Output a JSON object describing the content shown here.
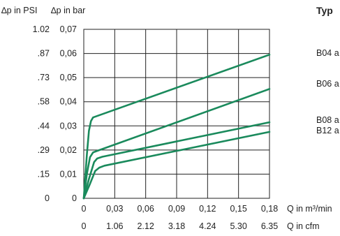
{
  "colors": {
    "series": "#1a8a5c",
    "title": "#1a8a5c",
    "grid": "#222222",
    "text": "#222222"
  },
  "chart_data": {
    "type": "line",
    "title": "Typ",
    "y_labels": {
      "psi": "∆p in PSI",
      "bar": "∆p in bar"
    },
    "x_labels": {
      "m3": "Q in m³/min",
      "cfm": "Q in cfm"
    },
    "xlim": [
      0,
      0.18
    ],
    "ylim": [
      0,
      0.07
    ],
    "grid": true,
    "x_ticks_m3": [
      "0",
      "0,03",
      "0,06",
      "0,09",
      "0,12",
      "0,15",
      "0,18"
    ],
    "x_ticks_cfm": [
      "0",
      "1.06",
      "2.12",
      "3.18",
      "4.24",
      "5.30",
      "6.35"
    ],
    "y_ticks_bar": [
      "0",
      "0,01",
      "0,02",
      "0,03",
      "0,04",
      "0,05",
      "0,06",
      "0,07"
    ],
    "y_ticks_psi": [
      "0",
      ".15",
      ".29",
      ".44",
      ".58",
      ".73",
      ".87",
      "1.02"
    ],
    "series": [
      {
        "name": "B04 a",
        "points": [
          [
            0,
            0
          ],
          [
            0.003,
            0.018
          ],
          [
            0.005,
            0.028
          ],
          [
            0.007,
            0.032
          ],
          [
            0.009,
            0.0335
          ],
          [
            0.18,
            0.0595
          ]
        ]
      },
      {
        "name": "B06 a",
        "points": [
          [
            0,
            0
          ],
          [
            0.003,
            0.01
          ],
          [
            0.006,
            0.017
          ],
          [
            0.009,
            0.019
          ],
          [
            0.012,
            0.0195
          ],
          [
            0.18,
            0.0453
          ]
        ]
      },
      {
        "name": "B08 a",
        "points": [
          [
            0,
            0
          ],
          [
            0.005,
            0.008
          ],
          [
            0.01,
            0.015
          ],
          [
            0.013,
            0.0165
          ],
          [
            0.018,
            0.0172
          ],
          [
            0.18,
            0.0315
          ]
        ]
      },
      {
        "name": "B12 a",
        "points": [
          [
            0,
            0
          ],
          [
            0.006,
            0.006
          ],
          [
            0.011,
            0.0113
          ],
          [
            0.015,
            0.0127
          ],
          [
            0.02,
            0.0135
          ],
          [
            0.18,
            0.0275
          ]
        ]
      }
    ]
  }
}
